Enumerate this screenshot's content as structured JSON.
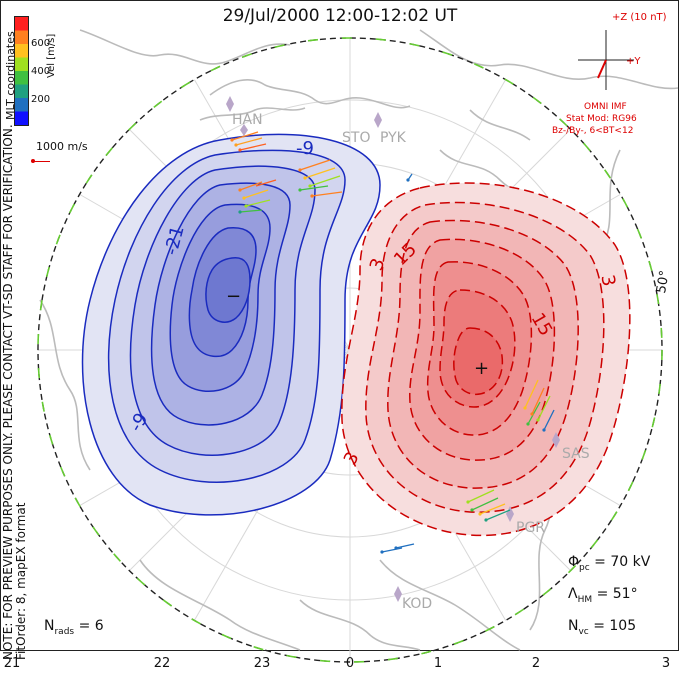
{
  "title": "29/Jul/2000 12:00-12:02 UT",
  "side_note_line1": "NOTE: FOR PREVIEW PURPOSES ONLY. PLEASE CONTACT VT-SD STAFF FOR VERIFICATION.",
  "side_note_line2": "FitOrder: 8, mapEX format",
  "coord_label": "MLT coordinates",
  "colorbar": {
    "label": "Vel [m/s]",
    "ticks": [
      "600",
      "400",
      "200"
    ],
    "colors": [
      "#ff2020",
      "#ff8020",
      "#ffc020",
      "#a0e020",
      "#40c040",
      "#20a080",
      "#2070c0",
      "#1010ff"
    ]
  },
  "velocity_scale": "1000 m/s",
  "imf": {
    "axis_z": "+Z (10 nT)",
    "axis_y": "+Y",
    "source": "OMNI IMF",
    "model": "Stat Mod: RG96",
    "condition": "Bz-/By-, 6<BT<12"
  },
  "stats": {
    "phi_pc": "= 70 kV",
    "lambda_hm": "= 51°",
    "n_vc": "= 105",
    "n_rads": "= 6"
  },
  "mlt_labels": [
    "21",
    "22",
    "23",
    "0",
    "1",
    "2",
    "3"
  ],
  "latitude_label": "50°",
  "stations": [
    "HAN",
    "STO",
    "PYK",
    "SAS",
    "PGR",
    "KOD"
  ],
  "contour_labels": {
    "neg": [
      "-9",
      "-21",
      "-9"
    ],
    "pos": [
      "3",
      "15",
      "15",
      "3",
      "3"
    ]
  },
  "centers": {
    "min": "−",
    "max": "+"
  },
  "colors": {
    "negative": "#1a2bbf",
    "positive": "#cc0000",
    "hmb": "#66cc33",
    "land": "#bbbbbb"
  }
}
